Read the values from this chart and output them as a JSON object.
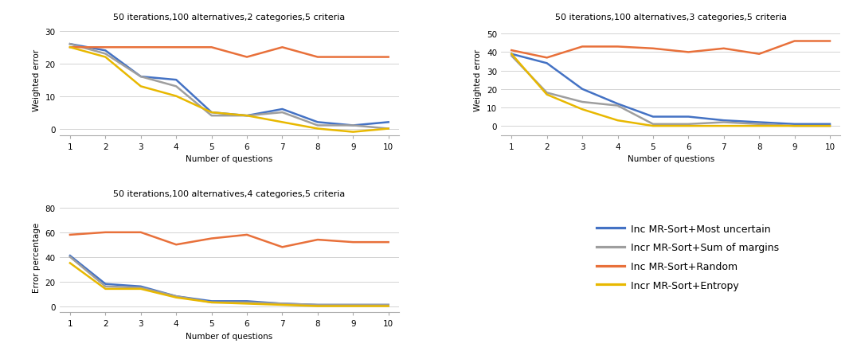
{
  "x": [
    1,
    2,
    3,
    4,
    5,
    6,
    7,
    8,
    9,
    10
  ],
  "plot1": {
    "title": "50 iterations,100 alternatives,2 categories,5 criteria",
    "ylabel": "Weighted error",
    "xlabel": "Number of questions",
    "ylim": [
      -2,
      32
    ],
    "yticks": [
      0,
      10,
      20,
      30
    ],
    "blue": [
      26,
      24,
      16,
      15,
      5,
      4,
      6,
      2,
      1,
      2
    ],
    "gray": [
      26,
      23,
      16,
      13,
      4,
      4,
      5,
      1,
      1,
      0
    ],
    "orange": [
      25,
      25,
      25,
      25,
      25,
      22,
      25,
      22,
      22,
      22
    ],
    "yellow": [
      25,
      22,
      13,
      10,
      5,
      4,
      2,
      0,
      -1,
      0
    ]
  },
  "plot2": {
    "title": "50 iterations,100 alternatives,3 categories,5 criteria",
    "ylabel": "Weighted error",
    "xlabel": "Number of questions",
    "ylim": [
      -5,
      55
    ],
    "yticks": [
      0,
      10,
      20,
      30,
      40,
      50
    ],
    "blue": [
      39,
      34,
      20,
      12,
      5,
      5,
      3,
      2,
      1,
      1
    ],
    "gray": [
      38,
      18,
      13,
      11,
      1,
      1,
      2,
      1,
      0,
      0
    ],
    "orange": [
      41,
      37,
      43,
      43,
      42,
      40,
      42,
      39,
      46,
      46
    ],
    "yellow": [
      39,
      17,
      9,
      3,
      0,
      0,
      0,
      0,
      0,
      0
    ]
  },
  "plot3": {
    "title": "50 iterations,100 alternatives,4 categories,5 criteria",
    "ylabel": "Error percentage",
    "xlabel": "Number of questions",
    "ylim": [
      -5,
      85
    ],
    "yticks": [
      0,
      20,
      40,
      60,
      80
    ],
    "blue": [
      41,
      18,
      16,
      8,
      4,
      4,
      2,
      1,
      1,
      1
    ],
    "gray": [
      40,
      16,
      15,
      8,
      3,
      3,
      2,
      1,
      1,
      1
    ],
    "orange": [
      58,
      60,
      60,
      50,
      55,
      58,
      48,
      54,
      52,
      52
    ],
    "yellow": [
      35,
      14,
      14,
      7,
      3,
      2,
      1,
      0,
      0,
      0
    ]
  },
  "colors": {
    "blue": "#4472C4",
    "gray": "#9E9E9E",
    "orange": "#E8703A",
    "yellow": "#E8B800"
  },
  "legend": {
    "blue_label": "Inc MR-Sort+Most uncertain",
    "gray_label": "Incr MR-Sort+Sum of margins",
    "orange_label": "Inc MR-Sort+Random",
    "yellow_label": "Incr MR-Sort+Entropy"
  },
  "line_width": 1.8,
  "figsize": [
    10.66,
    4.52
  ],
  "dpi": 100
}
